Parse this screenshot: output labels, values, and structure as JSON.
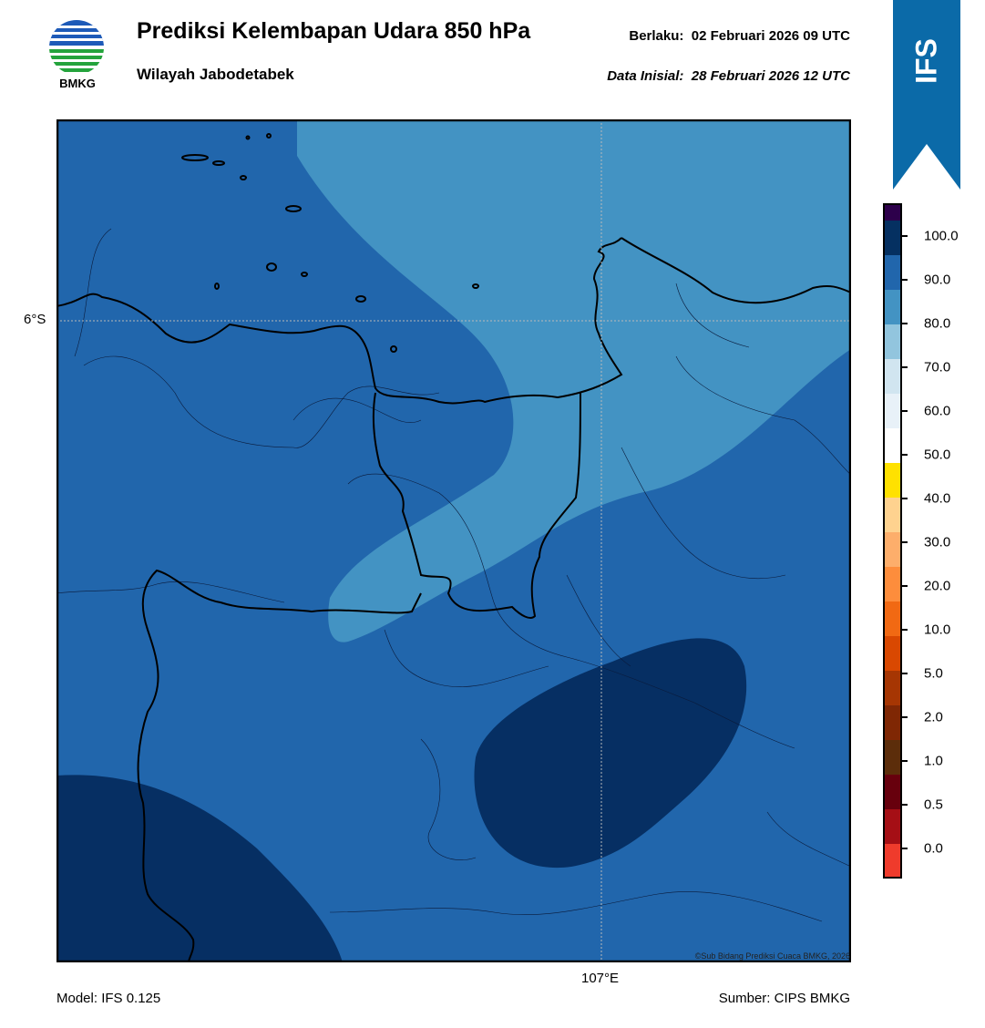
{
  "header": {
    "title": "Prediksi Kelembapan Udara 850 hPa",
    "subtitle": "Wilayah Jabodetabek",
    "valid_label": "Berlaku:",
    "valid_time": "02 Februari 2026 09 UTC",
    "init_label": "Data Inisial:",
    "init_time": "28 Februari 2026 12 UTC"
  },
  "logo": {
    "icon": "bmkg-logo-icon",
    "text": "BMKG"
  },
  "ribbon": {
    "text": "IFS",
    "color": "#0b6aa8"
  },
  "map": {
    "lat_label": "6°S",
    "lon_label": "107°E",
    "credit": "©Sub Bidang Prediksi Cuaca BMKG, 2026",
    "fill_colors": {
      "band_80_90": "#2166ac",
      "band_70_80": "#4393c3",
      "band_90_100": "#062f63"
    }
  },
  "colorbar": {
    "labels": [
      "100.0",
      "90.0",
      "80.0",
      "70.0",
      "60.0",
      "50.0",
      "40.0",
      "30.0",
      "20.0",
      "10.0",
      "5.0",
      "2.0",
      "1.0",
      "0.5",
      "0.0"
    ],
    "colors": [
      "#ef3b2c",
      "#a50f15",
      "#67000d",
      "#5c2d0a",
      "#7f2704",
      "#a63603",
      "#d94801",
      "#f16913",
      "#fd8d3c",
      "#fdae6b",
      "#fed28f",
      "#ffe100",
      "#ffffff",
      "#e8f1f8",
      "#d1e5f0",
      "#92c5de",
      "#4393c3",
      "#2166ac",
      "#053061",
      "#2d004b"
    ]
  },
  "footer": {
    "model": "Model: IFS 0.125",
    "source": "Sumber: CIPS BMKG"
  }
}
